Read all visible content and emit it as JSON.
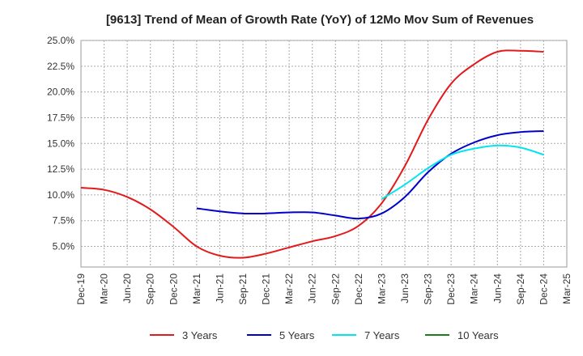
{
  "chart_data": {
    "type": "line",
    "title": "[9613]  Trend of Mean of Growth Rate (YoY) of 12Mo Mov Sum of Revenues",
    "xlabel": "",
    "ylabel": "",
    "ylim": [
      3.0,
      25.0
    ],
    "yticks": [
      "5.0%",
      "7.5%",
      "10.0%",
      "12.5%",
      "15.0%",
      "17.5%",
      "20.0%",
      "22.5%",
      "25.0%"
    ],
    "ytick_values": [
      5.0,
      7.5,
      10.0,
      12.5,
      15.0,
      17.5,
      20.0,
      22.5,
      25.0
    ],
    "categories": [
      "Dec-19",
      "Mar-20",
      "Jun-20",
      "Sep-20",
      "Dec-20",
      "Mar-21",
      "Jun-21",
      "Sep-21",
      "Dec-21",
      "Mar-22",
      "Jun-22",
      "Sep-22",
      "Dec-22",
      "Mar-23",
      "Jun-23",
      "Sep-23",
      "Dec-23",
      "Mar-24",
      "Jun-24",
      "Sep-24",
      "Dec-24",
      "Mar-25"
    ],
    "grid": true,
    "legend_position": "bottom",
    "series": [
      {
        "name": "3 Years",
        "color": "#e31a1c",
        "values": [
          10.7,
          10.5,
          9.8,
          8.6,
          6.9,
          5.0,
          4.1,
          3.9,
          4.3,
          4.9,
          5.5,
          6.0,
          7.0,
          9.2,
          12.8,
          17.3,
          20.8,
          22.7,
          23.9,
          24.0,
          23.9,
          null
        ]
      },
      {
        "name": "5 Years",
        "color": "#0000cc",
        "values": [
          null,
          null,
          null,
          null,
          null,
          8.7,
          8.4,
          8.2,
          8.2,
          8.3,
          8.3,
          8.0,
          7.7,
          8.2,
          9.8,
          12.2,
          14.0,
          15.1,
          15.8,
          16.1,
          16.2,
          null
        ]
      },
      {
        "name": "7 Years",
        "color": "#00e5ee",
        "values": [
          null,
          null,
          null,
          null,
          null,
          null,
          null,
          null,
          null,
          null,
          null,
          null,
          null,
          9.6,
          11.0,
          12.6,
          13.9,
          14.5,
          14.8,
          14.6,
          13.9,
          null
        ]
      },
      {
        "name": "10 Years",
        "color": "#1a7f1a",
        "values": [
          null,
          null,
          null,
          null,
          null,
          null,
          null,
          null,
          null,
          null,
          null,
          null,
          null,
          null,
          null,
          null,
          null,
          null,
          null,
          null,
          null,
          null
        ]
      }
    ]
  }
}
